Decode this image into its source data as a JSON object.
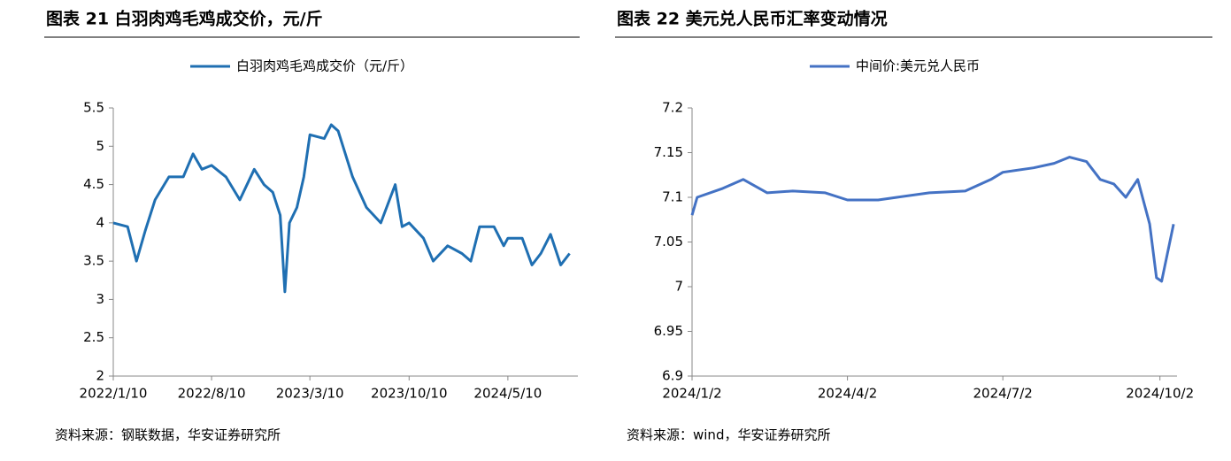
{
  "chart_data": [
    {
      "type": "line",
      "title": "图表 21 白羽肉鸡毛鸡成交价，元/斤",
      "source": "资料来源：钢联数据，华安证券研究所",
      "x": [
        "2022/1/10",
        "2022/2/10",
        "2022/3/1",
        "2022/3/20",
        "2022/4/10",
        "2022/5/10",
        "2022/6/10",
        "2022/7/1",
        "2022/7/20",
        "2022/8/10",
        "2022/9/10",
        "2022/10/10",
        "2022/11/10",
        "2022/12/1",
        "2022/12/20",
        "2023/1/5",
        "2023/1/15",
        "2023/1/25",
        "2023/2/10",
        "2023/2/25",
        "2023/3/10",
        "2023/4/10",
        "2023/4/25",
        "2023/5/10",
        "2023/6/10",
        "2023/7/10",
        "2023/8/10",
        "2023/9/10",
        "2023/9/25",
        "2023/10/10",
        "2023/11/10",
        "2023/12/1",
        "2024/1/1",
        "2024/2/1",
        "2024/2/20",
        "2024/3/10",
        "2024/4/10",
        "2024/5/1",
        "2024/5/10",
        "2024/6/10",
        "2024/7/1",
        "2024/7/20",
        "2024/8/10",
        "2024/9/1",
        "2024/9/20"
      ],
      "series": [
        {
          "name": "白羽肉鸡毛鸡成交价（元/斤）",
          "color": "#1f6fb2",
          "values": [
            4.0,
            3.95,
            3.5,
            3.9,
            4.3,
            4.6,
            4.6,
            4.9,
            4.7,
            4.75,
            4.6,
            4.3,
            4.7,
            4.5,
            4.4,
            4.1,
            3.1,
            4.0,
            4.2,
            4.6,
            5.15,
            5.1,
            5.28,
            5.2,
            4.6,
            4.2,
            4.0,
            4.5,
            3.95,
            4.0,
            3.8,
            3.5,
            3.7,
            3.6,
            3.5,
            3.95,
            3.95,
            3.7,
            3.8,
            3.8,
            3.45,
            3.6,
            3.85,
            3.45,
            3.6
          ]
        }
      ],
      "xlim": [
        "2022/1/10",
        "2024/10/8"
      ],
      "xticks": [
        "2022/1/10",
        "2022/8/10",
        "2023/3/10",
        "2023/10/10",
        "2024/5/10"
      ],
      "ylim": [
        2,
        5.5
      ],
      "yticks": [
        2,
        2.5,
        3,
        3.5,
        4,
        4.5,
        5,
        5.5
      ],
      "grid": false
    },
    {
      "type": "line",
      "title": "图表 22 美元兑人民币汇率变动情况",
      "source": "资料来源：wind，华安证券研究所",
      "x": [
        "2024/1/2",
        "2024/1/5",
        "2024/1/20",
        "2024/2/1",
        "2024/2/15",
        "2024/3/1",
        "2024/3/20",
        "2024/4/2",
        "2024/4/20",
        "2024/5/1",
        "2024/5/20",
        "2024/6/10",
        "2024/6/25",
        "2024/7/2",
        "2024/7/20",
        "2024/8/1",
        "2024/8/10",
        "2024/8/20",
        "2024/8/28",
        "2024/9/5",
        "2024/9/12",
        "2024/9/19",
        "2024/9/26",
        "2024/9/30",
        "2024/10/3",
        "2024/10/10"
      ],
      "series": [
        {
          "name": "中间价:美元兑人民币",
          "color": "#4472c4",
          "values": [
            7.08,
            7.1,
            7.11,
            7.12,
            7.105,
            7.107,
            7.105,
            7.097,
            7.097,
            7.1,
            7.105,
            7.107,
            7.12,
            7.128,
            7.133,
            7.138,
            7.145,
            7.14,
            7.12,
            7.115,
            7.1,
            7.12,
            7.07,
            7.01,
            7.006,
            7.07
          ]
        }
      ],
      "xlim": [
        "2024/1/2",
        "2024/10/12"
      ],
      "xticks": [
        "2024/1/2",
        "2024/4/2",
        "2024/7/2",
        "2024/10/2"
      ],
      "ylim": [
        6.9,
        7.2
      ],
      "yticks": [
        6.9,
        6.95,
        7,
        7.05,
        7.1,
        7.15,
        7.2
      ],
      "grid": false
    }
  ]
}
